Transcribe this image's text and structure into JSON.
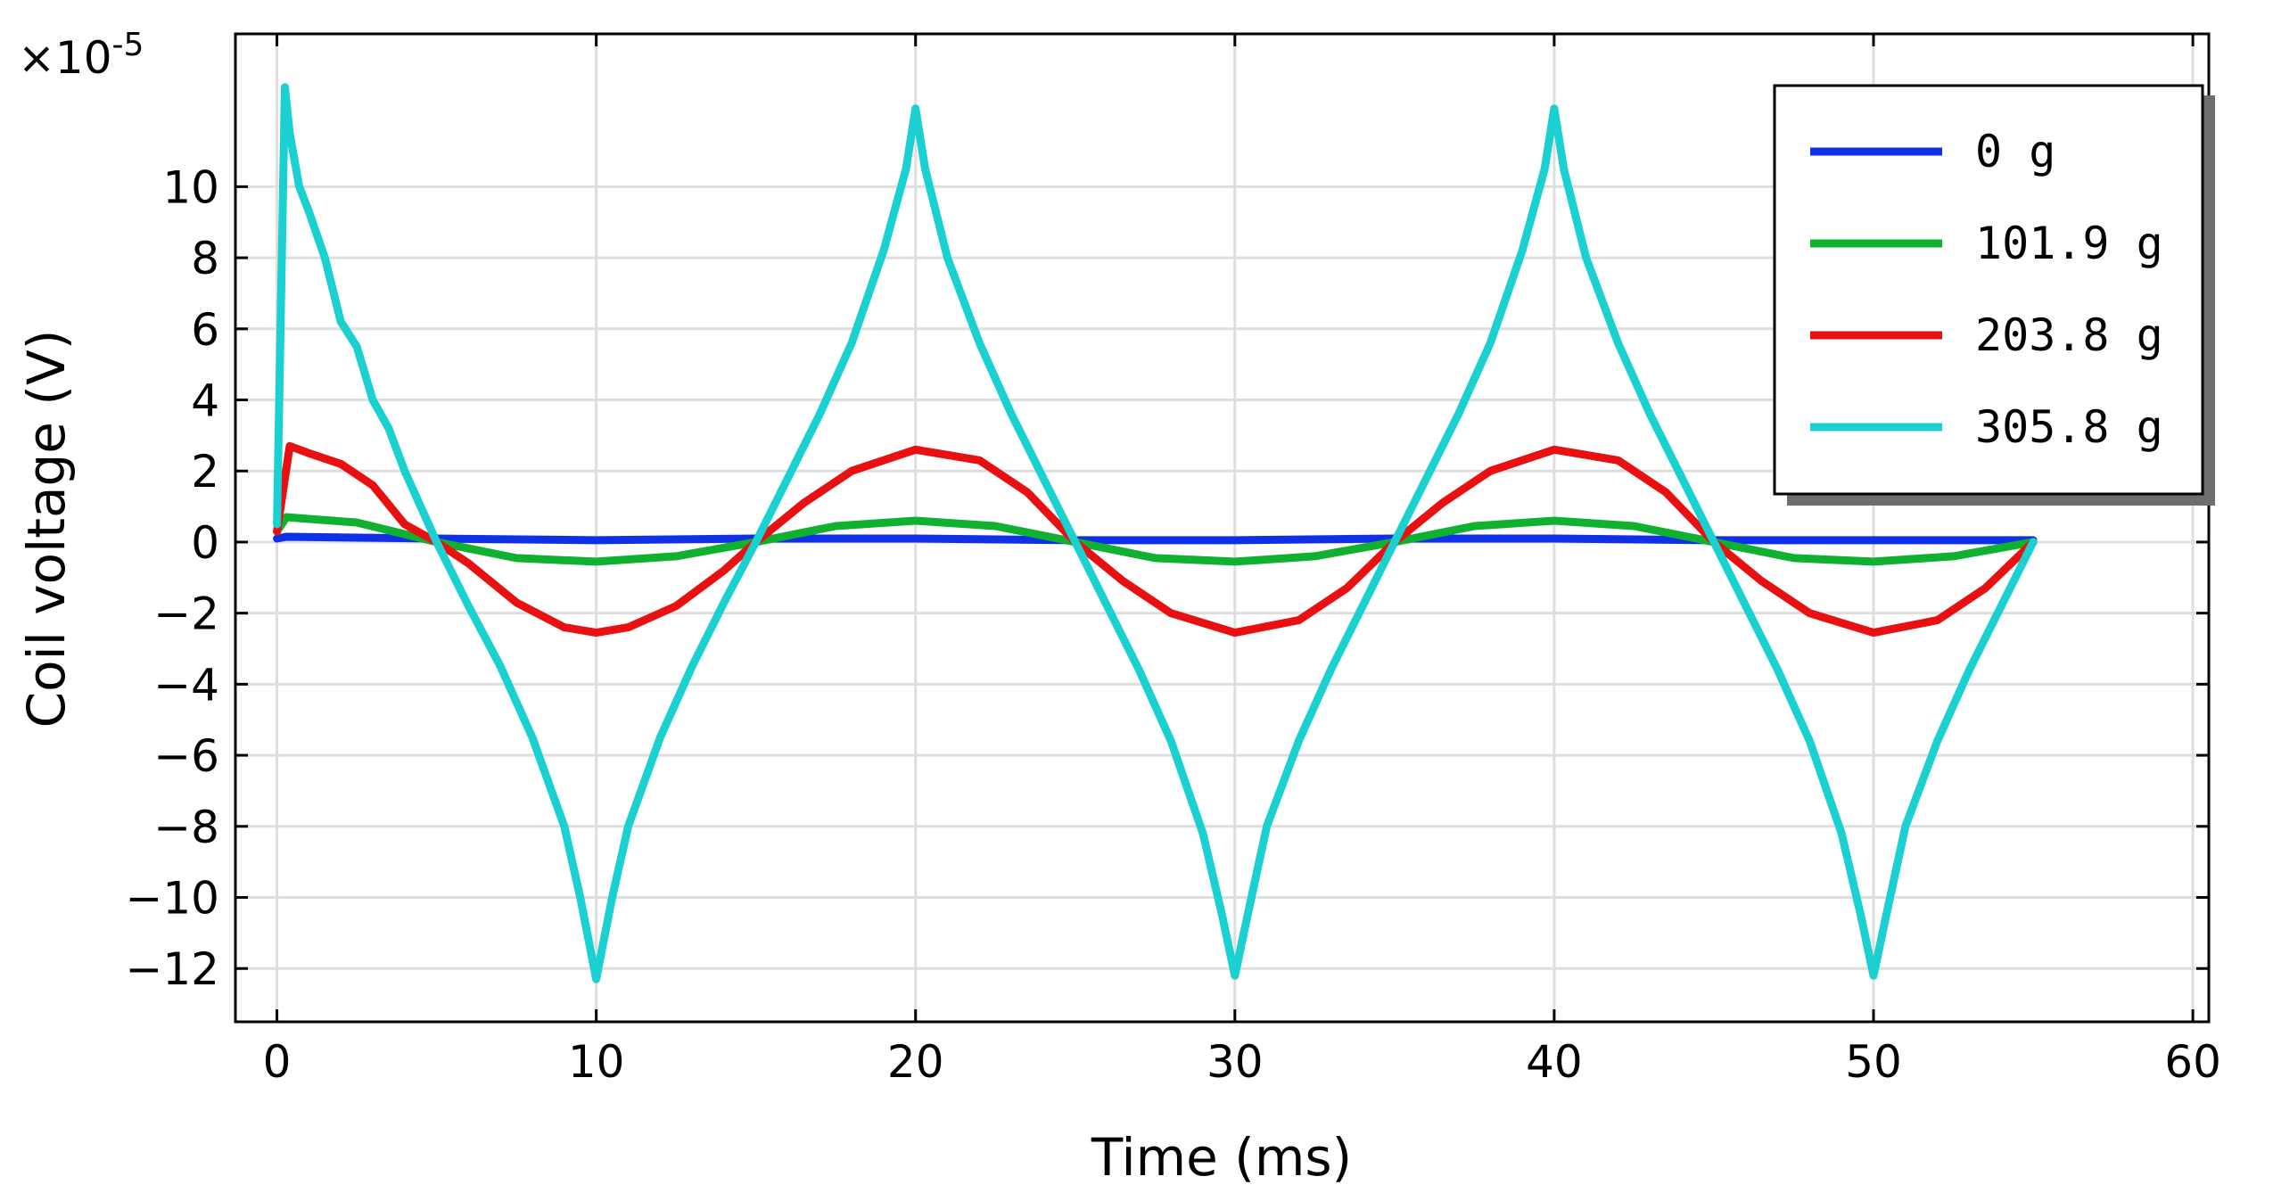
{
  "chart_data": {
    "type": "line",
    "title": "",
    "xlabel": "Time (ms)",
    "ylabel": "Coil voltage (V)",
    "y_multiplier_label": "×10",
    "y_multiplier_exponent": "-5",
    "xlim": [
      -1.3,
      60.5
    ],
    "ylim": [
      -13.5,
      14.3
    ],
    "x_ticks": [
      0,
      10,
      20,
      30,
      40,
      50,
      60
    ],
    "x_tick_labels": [
      "0",
      "10",
      "20",
      "30",
      "40",
      "50",
      "60"
    ],
    "y_ticks": [
      -12,
      -10,
      -8,
      -6,
      -4,
      -2,
      0,
      2,
      4,
      6,
      8,
      10
    ],
    "y_tick_labels": [
      "−12",
      "−10",
      "−8",
      "−6",
      "−4",
      "−2",
      "0",
      "2",
      "4",
      "6",
      "8",
      "10"
    ],
    "grid": true,
    "legend_position": "top-right",
    "series": [
      {
        "name": "0 g",
        "color": "#1030e8",
        "x": [
          0,
          0.3,
          5,
          10,
          15,
          20,
          25,
          30,
          35,
          40,
          45,
          50,
          55
        ],
        "y": [
          0.1,
          0.15,
          0.1,
          0.05,
          0.1,
          0.1,
          0.05,
          0.05,
          0.1,
          0.1,
          0.05,
          0.05,
          0.05
        ]
      },
      {
        "name": "101.9 g",
        "color": "#10b030",
        "x": [
          0,
          0.3,
          1,
          2.5,
          5,
          7.5,
          10,
          12.5,
          15,
          17.5,
          20,
          22.5,
          25,
          27.5,
          30,
          32.5,
          35,
          37.5,
          40,
          42.5,
          45,
          47.5,
          50,
          52.5,
          55
        ],
        "y": [
          0.3,
          0.7,
          0.65,
          0.55,
          0,
          -0.45,
          -0.55,
          -0.4,
          0,
          0.45,
          0.6,
          0.45,
          0,
          -0.45,
          -0.55,
          -0.4,
          0,
          0.45,
          0.6,
          0.45,
          0,
          -0.45,
          -0.55,
          -0.4,
          0
        ]
      },
      {
        "name": "203.8 g",
        "color": "#e81010",
        "x": [
          0,
          0.4,
          1,
          2,
          3,
          4,
          5,
          6,
          7.5,
          9,
          10,
          11,
          12.5,
          14,
          15,
          16.5,
          18,
          20,
          22,
          23.5,
          25,
          26.5,
          28,
          30,
          32,
          33.5,
          35,
          36.5,
          38,
          40,
          42,
          43.5,
          45,
          46.5,
          48,
          50,
          52,
          53.5,
          55
        ],
        "y": [
          0.3,
          2.7,
          2.5,
          2.2,
          1.6,
          0.5,
          0,
          -0.6,
          -1.7,
          -2.4,
          -2.55,
          -2.4,
          -1.8,
          -0.8,
          0,
          1.1,
          2.0,
          2.6,
          2.3,
          1.4,
          0,
          -1.1,
          -2.0,
          -2.55,
          -2.2,
          -1.3,
          0,
          1.1,
          2.0,
          2.6,
          2.3,
          1.4,
          0,
          -1.1,
          -2.0,
          -2.55,
          -2.2,
          -1.3,
          0
        ]
      },
      {
        "name": "305.8 g",
        "color": "#1ad0d0",
        "x": [
          0,
          0.25,
          0.4,
          0.7,
          1,
          1.5,
          2,
          2.5,
          3,
          3.5,
          4,
          5,
          6,
          7,
          8,
          9,
          9.5,
          10,
          10.5,
          11,
          12,
          13,
          14,
          15,
          16,
          17,
          18,
          19,
          19.7,
          20,
          20.3,
          21,
          22,
          23,
          24,
          25,
          26,
          27,
          28,
          29,
          29.6,
          30,
          30.4,
          31,
          32,
          33,
          34,
          35,
          36,
          37,
          38,
          39,
          39.7,
          40,
          40.3,
          41,
          42,
          43,
          44,
          45,
          46,
          47,
          48,
          49,
          49.6,
          50,
          50.4,
          51,
          52,
          53,
          54,
          55
        ],
        "y": [
          0.5,
          12.8,
          11.5,
          10.0,
          9.3,
          8.0,
          6.2,
          5.5,
          4.0,
          3.2,
          2.0,
          0,
          -1.8,
          -3.5,
          -5.5,
          -8.0,
          -10.0,
          -12.3,
          -10.0,
          -8.0,
          -5.5,
          -3.5,
          -1.7,
          0,
          1.8,
          3.6,
          5.6,
          8.2,
          10.5,
          12.2,
          10.5,
          8.0,
          5.6,
          3.6,
          1.8,
          0,
          -1.8,
          -3.6,
          -5.6,
          -8.2,
          -10.5,
          -12.2,
          -10.5,
          -8.0,
          -5.6,
          -3.6,
          -1.8,
          0,
          1.8,
          3.6,
          5.6,
          8.2,
          10.5,
          12.2,
          10.5,
          8.0,
          5.6,
          3.6,
          1.8,
          0,
          -1.8,
          -3.6,
          -5.6,
          -8.2,
          -10.5,
          -12.2,
          -10.5,
          -8.0,
          -5.6,
          -3.6,
          -1.8,
          0
        ]
      }
    ]
  }
}
